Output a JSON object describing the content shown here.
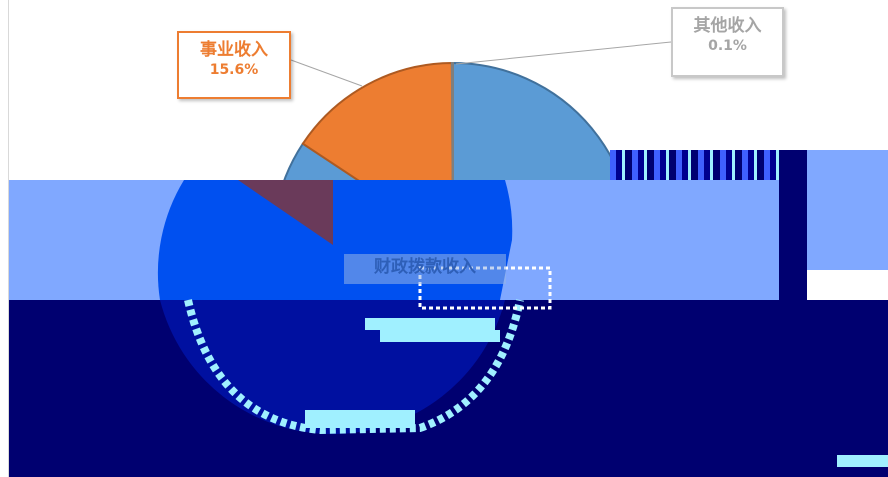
{
  "chart_data": {
    "type": "pie",
    "title": "",
    "slices": [
      {
        "category": "事业收入",
        "label": "15.6%",
        "value": 15.6,
        "color": "#ed7d31"
      },
      {
        "category": "其他收入",
        "label": "0.1%",
        "value": 0.1,
        "color": "#a5a5a5"
      },
      {
        "category": "财政拨款收入",
        "label": "",
        "value": 84.3,
        "color": "#5b9bd5"
      }
    ],
    "legend": "none",
    "data_labels": "callouts"
  },
  "colors": {
    "slice_blue": "#5b9bd5",
    "slice_orange": "#ed7d31",
    "slice_gray": "#a5a5a5",
    "overlay_blue": "#0050f0",
    "overlay_light": "#80a8ff",
    "overlay_navy": "#000070",
    "overlay_cyan": "#a0f0ff"
  }
}
